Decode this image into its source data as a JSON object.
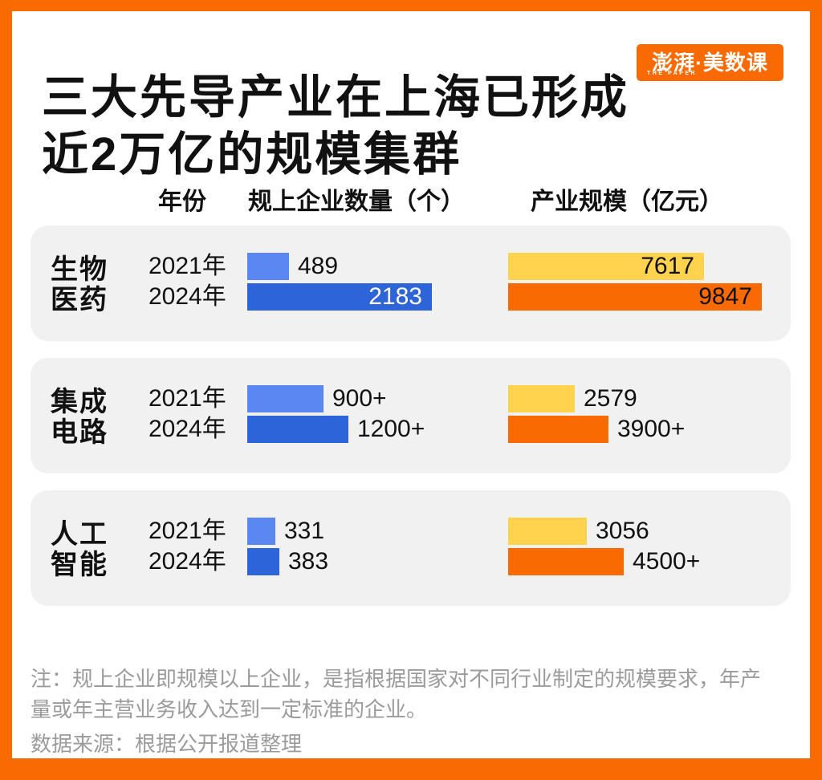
{
  "palette": {
    "frame_orange": "#FA6A02",
    "bar_blue_2021": "#5A87F2",
    "bar_blue_2024": "#2D64D8",
    "bar_yellow_2021": "#FFD34E",
    "bar_orange_2024": "#FA6A02",
    "panel_gray": "#F1F1F2",
    "note_gray": "#9B9B9B",
    "text_black": "#111111"
  },
  "header": {
    "title_lines": [
      "三大先导产业在上海已形成",
      "近2万亿的规模集群"
    ],
    "logo": {
      "main": "澎湃·美数课",
      "sub": "THE PAPER"
    }
  },
  "chart_data": {
    "type": "bar",
    "orientation": "horizontal",
    "column_headers": [
      "年份",
      "规上企业数量（个）",
      "产业规模（亿元）"
    ],
    "axis": {
      "enterprises_max": 2183,
      "scale_max": 9847
    },
    "legend": "none",
    "groups": [
      {
        "category": "生物医药",
        "category_lines": [
          "生物",
          "医药"
        ],
        "rows": [
          {
            "year": "2021年",
            "enterprises": {
              "label": "489",
              "value": 489,
              "label_position": "outside",
              "label_tone": "dark"
            },
            "scale": {
              "label": "7617",
              "value": 7617,
              "label_position": "inside",
              "label_tone": "dark"
            }
          },
          {
            "year": "2024年",
            "enterprises": {
              "label": "2183",
              "value": 2183,
              "label_position": "inside",
              "label_tone": "light"
            },
            "scale": {
              "label": "9847",
              "value": 9847,
              "label_position": "inside",
              "label_tone": "dark"
            }
          }
        ]
      },
      {
        "category": "集成电路",
        "category_lines": [
          "集成",
          "电路"
        ],
        "rows": [
          {
            "year": "2021年",
            "enterprises": {
              "label": "900+",
              "value": 900,
              "label_position": "outside",
              "label_tone": "dark"
            },
            "scale": {
              "label": "2579",
              "value": 2579,
              "label_position": "outside",
              "label_tone": "dark"
            }
          },
          {
            "year": "2024年",
            "enterprises": {
              "label": "1200+",
              "value": 1200,
              "label_position": "outside",
              "label_tone": "dark"
            },
            "scale": {
              "label": "3900+",
              "value": 3900,
              "label_position": "outside",
              "label_tone": "dark"
            }
          }
        ]
      },
      {
        "category": "人工智能",
        "category_lines": [
          "人工",
          "智能"
        ],
        "rows": [
          {
            "year": "2021年",
            "enterprises": {
              "label": "331",
              "value": 331,
              "label_position": "outside",
              "label_tone": "dark"
            },
            "scale": {
              "label": "3056",
              "value": 3056,
              "label_position": "outside",
              "label_tone": "dark"
            }
          },
          {
            "year": "2024年",
            "enterprises": {
              "label": "383",
              "value": 383,
              "label_position": "outside",
              "label_tone": "dark"
            },
            "scale": {
              "label": "4500+",
              "value": 4500,
              "label_position": "outside",
              "label_tone": "dark"
            }
          }
        ]
      }
    ]
  },
  "notes": {
    "footnote": "注：规上企业即规模以上企业，是指根据国家对不同行业制定的规模要求，年产量或年主营业务收入达到一定标准的企业。",
    "source": "数据来源：根据公开报道整理"
  }
}
